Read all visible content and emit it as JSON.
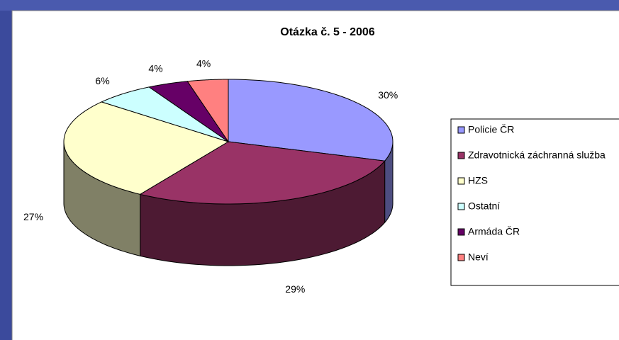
{
  "chart_data": {
    "type": "pie",
    "title": "Otázka č. 5 - 2006",
    "categories": [
      "Policie ČR",
      "Zdravotnická záchranná služba",
      "HZS",
      "Ostatní",
      "Armáda ČR",
      "Neví"
    ],
    "values": [
      30,
      29,
      27,
      6,
      4,
      4
    ],
    "value_labels": [
      "30%",
      "29%",
      "27%",
      "6%",
      "4%",
      "4%"
    ],
    "colors": [
      "#9999ff",
      "#993366",
      "#ffffcc",
      "#ccffff",
      "#660066",
      "#ff8080"
    ],
    "legend": "right"
  }
}
